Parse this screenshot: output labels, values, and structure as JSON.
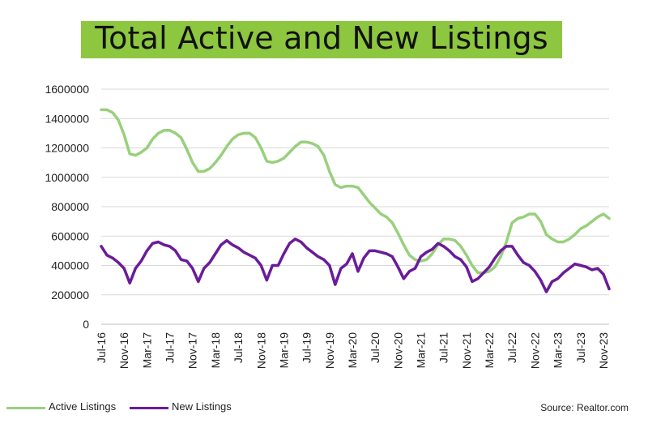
{
  "title": "Total Active and New Listings",
  "source": "Source: Realtor.com",
  "colors": {
    "title_band": "#8dc63f",
    "active": "#98d07c",
    "new": "#6a1b9a",
    "grid": "#d9d9d9"
  },
  "chart_data": {
    "type": "line",
    "title": "Total Active and New Listings",
    "xlabel": "",
    "ylabel": "",
    "ylim": [
      0,
      1600000
    ],
    "y_ticks": [
      "1600000",
      "1400000",
      "1200000",
      "1000000",
      "800000",
      "600000",
      "400000",
      "200000",
      "0"
    ],
    "x_tick_labels": [
      "Jul-16",
      "Nov-16",
      "Mar-17",
      "Jul-17",
      "Nov-17",
      "Mar-18",
      "Jul-18",
      "Nov-18",
      "Mar-19",
      "Jul-19",
      "Nov-19",
      "Mar-20",
      "Jul-20",
      "Nov-20",
      "Mar-21",
      "Jul-21",
      "Nov-21",
      "Mar-22",
      "Jul-22",
      "Nov-22",
      "Mar-23",
      "Jul-23",
      "Nov-23"
    ],
    "x": [
      "Jul-16",
      "Aug-16",
      "Sep-16",
      "Oct-16",
      "Nov-16",
      "Dec-16",
      "Jan-17",
      "Feb-17",
      "Mar-17",
      "Apr-17",
      "May-17",
      "Jun-17",
      "Jul-17",
      "Aug-17",
      "Sep-17",
      "Oct-17",
      "Nov-17",
      "Dec-17",
      "Jan-18",
      "Feb-18",
      "Mar-18",
      "Apr-18",
      "May-18",
      "Jun-18",
      "Jul-18",
      "Aug-18",
      "Sep-18",
      "Oct-18",
      "Nov-18",
      "Dec-18",
      "Jan-19",
      "Feb-19",
      "Mar-19",
      "Apr-19",
      "May-19",
      "Jun-19",
      "Jul-19",
      "Aug-19",
      "Sep-19",
      "Oct-19",
      "Nov-19",
      "Dec-19",
      "Jan-20",
      "Feb-20",
      "Mar-20",
      "Apr-20",
      "May-20",
      "Jun-20",
      "Jul-20",
      "Aug-20",
      "Sep-20",
      "Oct-20",
      "Nov-20",
      "Dec-20",
      "Jan-21",
      "Feb-21",
      "Mar-21",
      "Apr-21",
      "May-21",
      "Jun-21",
      "Jul-21",
      "Aug-21",
      "Sep-21",
      "Oct-21",
      "Nov-21",
      "Dec-21",
      "Jan-22",
      "Feb-22",
      "Mar-22",
      "Apr-22",
      "May-22",
      "Jun-22",
      "Jul-22",
      "Aug-22",
      "Sep-22",
      "Oct-22",
      "Nov-22",
      "Dec-22",
      "Jan-23",
      "Feb-23",
      "Mar-23",
      "Apr-23",
      "May-23",
      "Jun-23",
      "Jul-23",
      "Aug-23",
      "Sep-23",
      "Oct-23",
      "Nov-23",
      "Dec-23"
    ],
    "series": [
      {
        "name": "Active Listings",
        "color": "#98d07c",
        "values": [
          1460000,
          1460000,
          1440000,
          1390000,
          1290000,
          1160000,
          1150000,
          1170000,
          1200000,
          1260000,
          1300000,
          1320000,
          1320000,
          1300000,
          1270000,
          1190000,
          1100000,
          1040000,
          1040000,
          1060000,
          1100000,
          1150000,
          1210000,
          1260000,
          1290000,
          1300000,
          1300000,
          1270000,
          1200000,
          1110000,
          1100000,
          1110000,
          1130000,
          1170000,
          1210000,
          1240000,
          1240000,
          1230000,
          1210000,
          1150000,
          1040000,
          950000,
          930000,
          940000,
          940000,
          930000,
          880000,
          830000,
          790000,
          750000,
          730000,
          690000,
          620000,
          540000,
          470000,
          440000,
          430000,
          440000,
          480000,
          540000,
          580000,
          580000,
          570000,
          530000,
          470000,
          400000,
          350000,
          350000,
          360000,
          390000,
          460000,
          560000,
          690000,
          720000,
          730000,
          750000,
          750000,
          700000,
          610000,
          580000,
          560000,
          560000,
          580000,
          610000,
          650000,
          670000,
          700000,
          730000,
          750000,
          720000
        ]
      },
      {
        "name": "New Listings",
        "color": "#6a1b9a",
        "values": [
          530000,
          470000,
          450000,
          420000,
          380000,
          280000,
          380000,
          430000,
          500000,
          550000,
          560000,
          540000,
          530000,
          500000,
          440000,
          430000,
          380000,
          290000,
          380000,
          420000,
          480000,
          540000,
          570000,
          540000,
          520000,
          490000,
          470000,
          450000,
          400000,
          300000,
          400000,
          400000,
          480000,
          550000,
          580000,
          560000,
          520000,
          490000,
          460000,
          440000,
          400000,
          270000,
          380000,
          410000,
          480000,
          360000,
          450000,
          500000,
          500000,
          490000,
          480000,
          460000,
          390000,
          310000,
          360000,
          380000,
          460000,
          490000,
          510000,
          550000,
          530000,
          500000,
          460000,
          440000,
          390000,
          290000,
          310000,
          350000,
          390000,
          450000,
          500000,
          530000,
          530000,
          470000,
          420000,
          400000,
          360000,
          300000,
          220000,
          290000,
          310000,
          350000,
          380000,
          410000,
          400000,
          390000,
          370000,
          380000,
          340000,
          240000
        ]
      }
    ],
    "legend": "bottom-left",
    "grid": true
  }
}
